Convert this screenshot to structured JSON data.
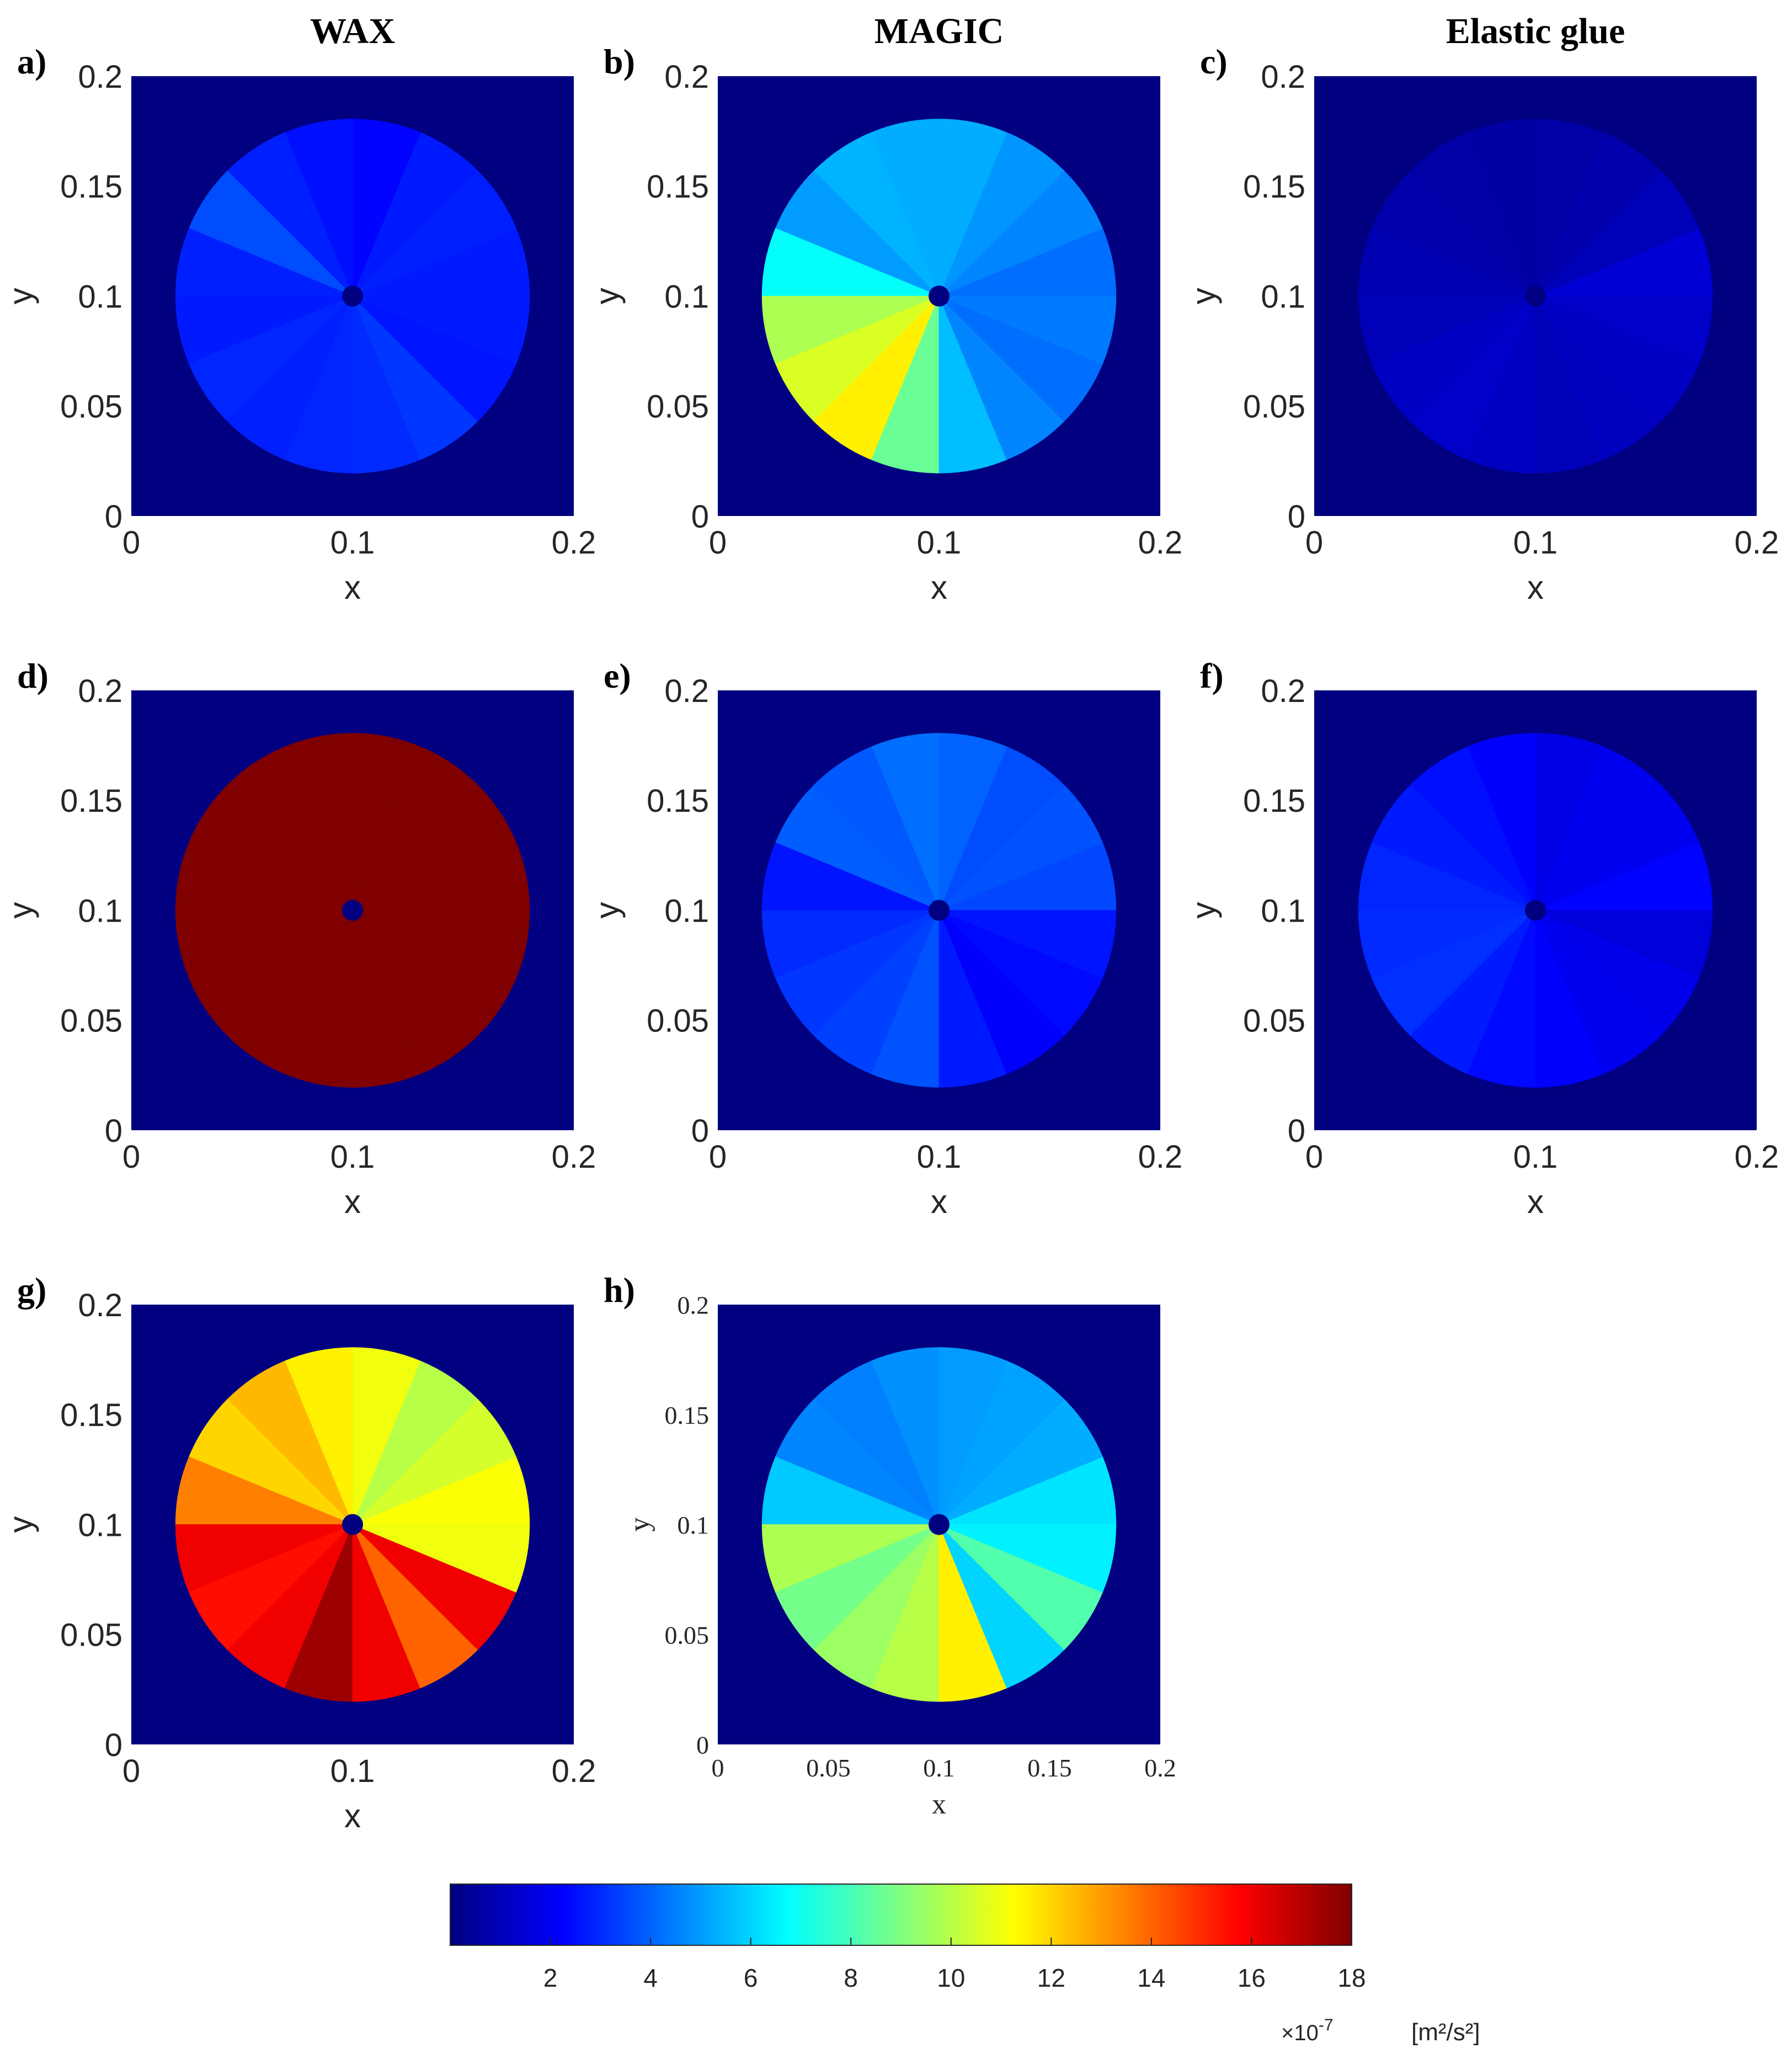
{
  "figure": {
    "column_titles": [
      "WAX",
      "MAGIC",
      "Elastic glue"
    ],
    "colorbar": {
      "ticks": [
        2,
        4,
        6,
        8,
        10,
        12,
        14,
        16,
        18
      ],
      "range": [
        0,
        18
      ],
      "colormap": "jet",
      "multiplier_label": "×10",
      "multiplier_exponent": "-7",
      "unit_label": "[m²/s²]"
    }
  },
  "chart_data": [
    {
      "type": "heatmap",
      "panel": "a)",
      "title": "WAX",
      "xlabel": "x",
      "ylabel": "y",
      "xlim": [
        0,
        0.2
      ],
      "ylim": [
        0,
        0.2
      ],
      "xticks": [
        "0",
        "0.1",
        "0.2"
      ],
      "yticks": [
        "0",
        "0.05",
        "0.1",
        "0.15",
        "0.2"
      ],
      "disk": {
        "center": [
          0.1,
          0.1
        ],
        "radius": 0.08,
        "sectors": 16
      },
      "sector_values": [
        2.7,
        2.8,
        2.7,
        2.3,
        2.5,
        2.8,
        3.6,
        2.8,
        2.7,
        2.9,
        2.8,
        2.9,
        3.0,
        3.2,
        2.6,
        2.7
      ],
      "background_value": 0
    },
    {
      "type": "heatmap",
      "panel": "b)",
      "title": "MAGIC",
      "xlabel": "x",
      "ylabel": "y",
      "xlim": [
        0,
        0.2
      ],
      "ylim": [
        0,
        0.2
      ],
      "xticks": [
        "0",
        "0.1",
        "0.2"
      ],
      "yticks": [
        "0",
        "0.05",
        "0.1",
        "0.15",
        "0.2"
      ],
      "disk": {
        "center": [
          0.1,
          0.1
        ],
        "radius": 0.08,
        "sectors": 16
      },
      "sector_values": [
        4.2,
        4.6,
        4.9,
        5.3,
        5.3,
        5.4,
        5.0,
        6.8,
        9.8,
        10.6,
        11.5,
        8.6,
        5.6,
        4.6,
        4.2,
        4.4
      ],
      "background_value": 0
    },
    {
      "type": "heatmap",
      "panel": "c)",
      "title": "Elastic glue",
      "xlabel": "x",
      "ylabel": "y",
      "xlim": [
        0,
        0.2
      ],
      "ylim": [
        0,
        0.2
      ],
      "xticks": [
        "0",
        "0.1",
        "0.2"
      ],
      "yticks": [
        "0",
        "0.05",
        "0.1",
        "0.15",
        "0.2"
      ],
      "disk": {
        "center": [
          0.1,
          0.1
        ],
        "radius": 0.08,
        "sectors": 16
      },
      "sector_values": [
        1.5,
        1.0,
        0.8,
        0.7,
        0.6,
        0.7,
        0.8,
        0.9,
        1.0,
        1.2,
        1.3,
        1.2,
        1.0,
        1.1,
        1.2,
        1.3
      ],
      "background_value": 0
    },
    {
      "type": "heatmap",
      "panel": "d)",
      "title": "",
      "xlabel": "x",
      "ylabel": "y",
      "xlim": [
        0,
        0.2
      ],
      "ylim": [
        0,
        0.2
      ],
      "xticks": [
        "0",
        "0.1",
        "0.2"
      ],
      "yticks": [
        "0",
        "0.05",
        "0.1",
        "0.15",
        "0.2"
      ],
      "disk": {
        "center": [
          0.1,
          0.1
        ],
        "radius": 0.08,
        "sectors": 16
      },
      "sector_values": [
        18,
        18,
        18,
        18,
        18,
        18,
        18,
        18,
        18,
        18,
        18,
        18,
        18,
        18,
        18,
        18
      ],
      "background_value": 0
    },
    {
      "type": "heatmap",
      "panel": "e)",
      "title": "",
      "xlabel": "x",
      "ylabel": "y",
      "xlim": [
        0,
        0.2
      ],
      "ylim": [
        0,
        0.2
      ],
      "xticks": [
        "0",
        "0.1",
        "0.2"
      ],
      "yticks": [
        "0",
        "0.05",
        "0.1",
        "0.15",
        "0.2"
      ],
      "disk": {
        "center": [
          0.1,
          0.1
        ],
        "radius": 0.08,
        "sectors": 16
      },
      "sector_values": [
        3.5,
        3.7,
        3.6,
        4.0,
        4.2,
        3.8,
        3.9,
        2.6,
        3.0,
        3.2,
        3.4,
        3.7,
        2.7,
        2.2,
        2.4,
        2.6
      ],
      "background_value": 0
    },
    {
      "type": "heatmap",
      "panel": "f)",
      "title": "",
      "xlabel": "x",
      "ylabel": "y",
      "xlim": [
        0,
        0.2
      ],
      "ylim": [
        0,
        0.2
      ],
      "xticks": [
        "0",
        "0.1",
        "0.2"
      ],
      "yticks": [
        "0",
        "0.05",
        "0.1",
        "0.15",
        "0.2"
      ],
      "disk": {
        "center": [
          0.1,
          0.1
        ],
        "radius": 0.08,
        "sectors": 16
      },
      "sector_values": [
        2.3,
        2.0,
        2.0,
        1.8,
        2.2,
        2.5,
        2.7,
        2.9,
        3.0,
        3.1,
        2.7,
        2.4,
        2.2,
        2.0,
        1.9,
        1.6
      ],
      "background_value": 0
    },
    {
      "type": "heatmap",
      "panel": "g)",
      "title": "",
      "xlabel": "x",
      "ylabel": "y",
      "xlim": [
        0,
        0.2
      ],
      "ylim": [
        0,
        0.2
      ],
      "xticks": [
        "0",
        "0.1",
        "0.2"
      ],
      "yticks": [
        "0",
        "0.05",
        "0.1",
        "0.15",
        "0.2"
      ],
      "disk": {
        "center": [
          0.1,
          0.1
        ],
        "radius": 0.08,
        "sectors": 16
      },
      "sector_values": [
        11.2,
        10.5,
        10.0,
        11.0,
        11.5,
        12.5,
        12.0,
        13.5,
        16.0,
        15.5,
        16.0,
        17.5,
        16.0,
        14.0,
        16.0,
        11.0
      ],
      "background_value": 0
    },
    {
      "type": "heatmap",
      "panel": "h)",
      "title": "",
      "xlabel": "x",
      "ylabel": "y",
      "xlim": [
        0,
        0.2
      ],
      "ylim": [
        0,
        0.2
      ],
      "xticks": [
        "0",
        "0.05",
        "0.1",
        "0.15",
        "0.2"
      ],
      "yticks": [
        "0",
        "0.05",
        "0.1",
        "0.15",
        "0.2"
      ],
      "disk": {
        "center": [
          0.1,
          0.1
        ],
        "radius": 0.08,
        "sectors": 16
      },
      "sector_values": [
        6.3,
        5.3,
        5.1,
        5.0,
        4.8,
        4.5,
        4.6,
        5.8,
        9.8,
        8.8,
        9.5,
        10.0,
        11.5,
        6.0,
        8.2,
        6.5
      ],
      "background_value": 0
    }
  ]
}
